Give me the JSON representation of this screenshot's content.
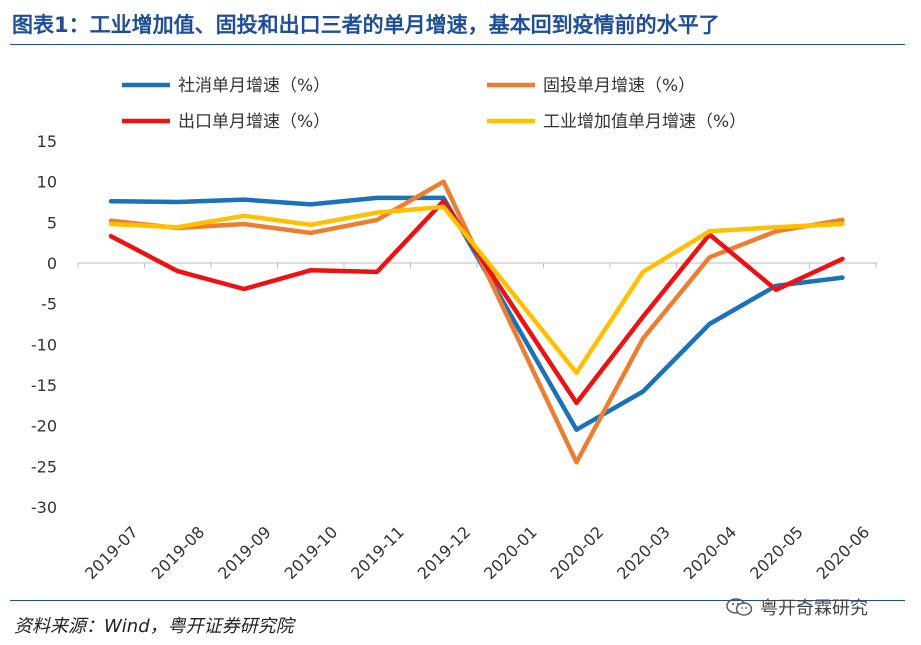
{
  "header": {
    "title": "图表1：工业增加值、固投和出口三者的单月增速，基本回到疫情前的水平了"
  },
  "footer": {
    "source": "资料来源：Wind，粤开证券研究院",
    "watermark": "粤开奇霖研究",
    "watermark_icon": "wechat-icon"
  },
  "chart_data": {
    "type": "line",
    "categories": [
      "2019-07",
      "2019-08",
      "2019-09",
      "2019-10",
      "2019-11",
      "2019-12",
      "2020-01",
      "2020-02",
      "2020-03",
      "2020-04",
      "2020-05",
      "2020-06"
    ],
    "ylim": [
      -30,
      15
    ],
    "yticks": [
      15,
      10,
      5,
      0,
      -5,
      -10,
      -15,
      -20,
      -25,
      -30
    ],
    "grid": false,
    "legend_position": "top",
    "series": [
      {
        "name": "社消单月增速（%）",
        "color": "#1a72bb",
        "values": [
          7.6,
          7.5,
          7.8,
          7.2,
          8.0,
          8.0,
          null,
          -20.5,
          -15.8,
          -7.5,
          -2.8,
          -1.8
        ]
      },
      {
        "name": "固投单月增速（%）",
        "color": "#ed7d31",
        "values": [
          5.2,
          4.3,
          4.8,
          3.7,
          5.3,
          10.0,
          null,
          -24.5,
          -9.3,
          0.7,
          3.9,
          5.3
        ]
      },
      {
        "name": "出口单月增速（%）",
        "color": "#ee1111",
        "values": [
          3.3,
          -1.0,
          -3.2,
          -0.9,
          -1.1,
          7.6,
          null,
          -17.2,
          -6.6,
          3.5,
          -3.3,
          0.5
        ]
      },
      {
        "name": "工业增加值单月增速（%）",
        "color": "#ffc000",
        "values": [
          4.8,
          4.4,
          5.8,
          4.7,
          6.2,
          6.9,
          null,
          -13.5,
          -1.1,
          3.9,
          4.4,
          4.8
        ]
      }
    ]
  }
}
